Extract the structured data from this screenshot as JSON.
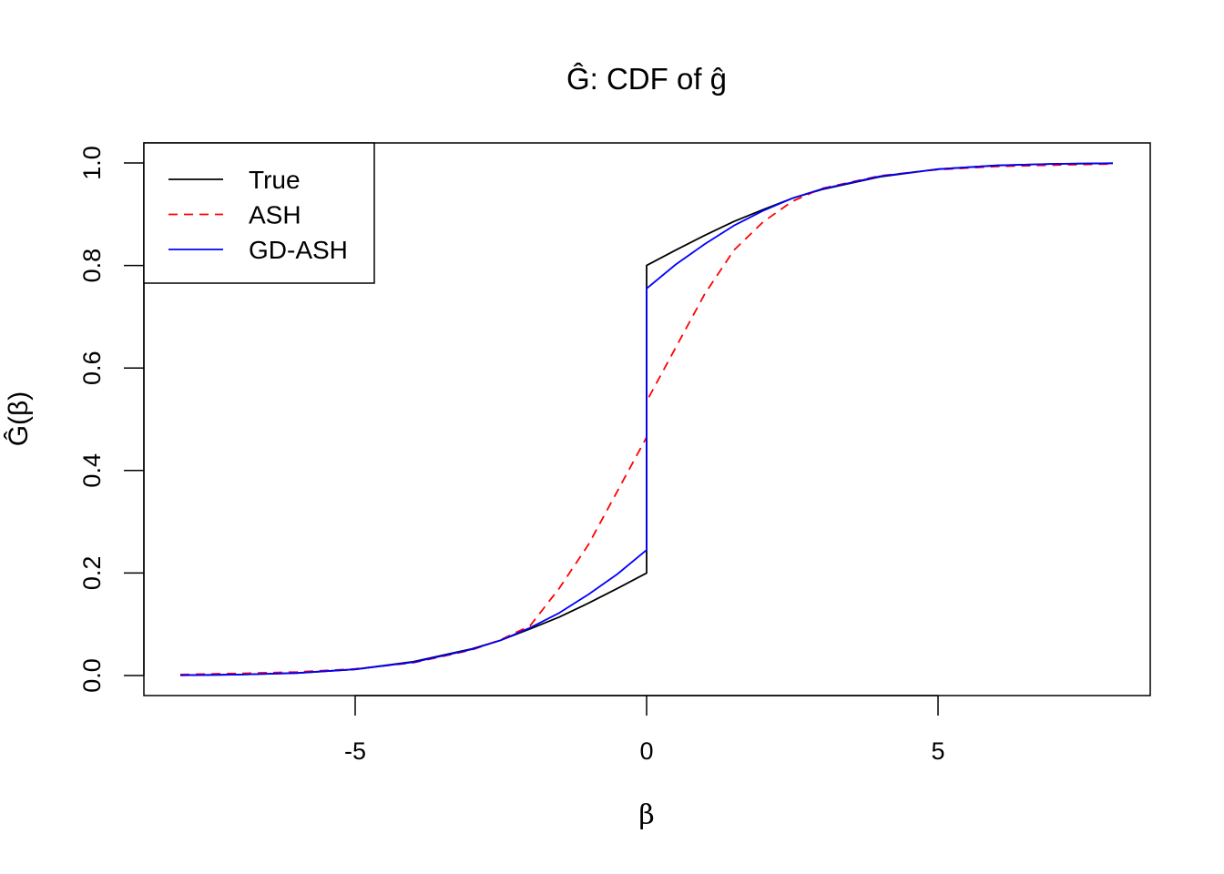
{
  "chart_data": {
    "type": "line",
    "title": "Ĝ: CDF of ĝ",
    "xlabel": "β",
    "ylabel": "Ĝ(β)",
    "xlim": [
      -8.6,
      8.6
    ],
    "ylim": [
      -0.04,
      1.04
    ],
    "xticks": [
      -5,
      0,
      5
    ],
    "xtick_labels": [
      "-5",
      "0",
      "5"
    ],
    "yticks": [
      0,
      0.2,
      0.4,
      0.6,
      0.8,
      1.0
    ],
    "ytick_labels": [
      "0.0",
      "0.2",
      "0.4",
      "0.6",
      "0.8",
      "1.0"
    ],
    "grid": false,
    "legend_position": "top-left",
    "series": [
      {
        "name": "True",
        "color": "#000000",
        "dash": "solid",
        "points": [
          [
            -8,
            0.0005
          ],
          [
            -7,
            0.0017
          ],
          [
            -6,
            0.0048
          ],
          [
            -5,
            0.012
          ],
          [
            -4,
            0.027
          ],
          [
            -3,
            0.052
          ],
          [
            -2.5,
            0.069
          ],
          [
            -2,
            0.091
          ],
          [
            -1.5,
            0.114
          ],
          [
            -1,
            0.141
          ],
          [
            -0.5,
            0.17
          ],
          [
            0,
            0.2
          ],
          [
            0,
            0.8
          ],
          [
            0.5,
            0.83
          ],
          [
            1,
            0.859
          ],
          [
            1.5,
            0.886
          ],
          [
            2,
            0.909
          ],
          [
            2.5,
            0.931
          ],
          [
            3,
            0.948
          ],
          [
            4,
            0.973
          ],
          [
            5,
            0.988
          ],
          [
            6,
            0.9952
          ],
          [
            7,
            0.9983
          ],
          [
            8,
            0.9995
          ]
        ]
      },
      {
        "name": "ASH",
        "color": "#ff0000",
        "dash": "dashed",
        "points": [
          [
            -8,
            0.002
          ],
          [
            -7,
            0.004
          ],
          [
            -6,
            0.007
          ],
          [
            -5,
            0.013
          ],
          [
            -4,
            0.025
          ],
          [
            -3,
            0.05
          ],
          [
            -2.5,
            0.07
          ],
          [
            -2,
            0.097
          ],
          [
            -1.5,
            0.17
          ],
          [
            -1,
            0.255
          ],
          [
            -0.5,
            0.36
          ],
          [
            0,
            0.465
          ],
          [
            0,
            0.535
          ],
          [
            0.5,
            0.64
          ],
          [
            1,
            0.745
          ],
          [
            1.5,
            0.83
          ],
          [
            2,
            0.885
          ],
          [
            2.5,
            0.925
          ],
          [
            3,
            0.95
          ],
          [
            4,
            0.975
          ],
          [
            5,
            0.987
          ],
          [
            6,
            0.993
          ],
          [
            7,
            0.996
          ],
          [
            8,
            0.998
          ]
        ]
      },
      {
        "name": "GD-ASH",
        "color": "#0000ff",
        "dash": "solid",
        "points": [
          [
            -8,
            0.0005
          ],
          [
            -7,
            0.0017
          ],
          [
            -6,
            0.005
          ],
          [
            -5,
            0.012
          ],
          [
            -4,
            0.026
          ],
          [
            -3,
            0.051
          ],
          [
            -2.5,
            0.069
          ],
          [
            -2,
            0.093
          ],
          [
            -1.5,
            0.122
          ],
          [
            -1,
            0.158
          ],
          [
            -0.5,
            0.198
          ],
          [
            0,
            0.245
          ],
          [
            0,
            0.755
          ],
          [
            0.5,
            0.802
          ],
          [
            1,
            0.842
          ],
          [
            1.5,
            0.878
          ],
          [
            2,
            0.907
          ],
          [
            2.5,
            0.931
          ],
          [
            3,
            0.949
          ],
          [
            4,
            0.974
          ],
          [
            5,
            0.988
          ],
          [
            6,
            0.995
          ],
          [
            7,
            0.9983
          ],
          [
            8,
            0.9995
          ]
        ]
      }
    ]
  }
}
